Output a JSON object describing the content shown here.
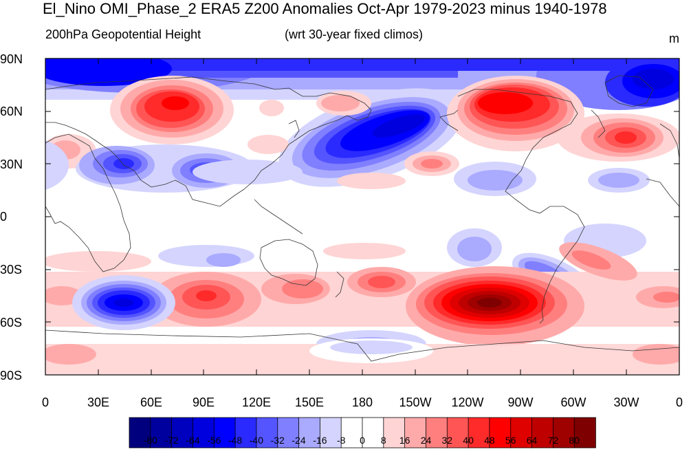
{
  "title": "El_Nino OMI_Phase_2 ERA5 Z200 Anomalies Oct-Apr 1979-2023 minus 1940-1978",
  "subtitle_left": "200hPa Geopotential Height",
  "subtitle_center": "(wrt 30-year fixed climos)",
  "units": "m",
  "lat_labels": [
    "90N",
    "60N",
    "30N",
    "0",
    "30S",
    "60S",
    "90S"
  ],
  "lon_labels": [
    "0",
    "30E",
    "60E",
    "90E",
    "120E",
    "150E",
    "180",
    "150W",
    "120W",
    "90W",
    "60W",
    "30W",
    "0"
  ],
  "colorbar": {
    "levels": [
      "-80",
      "-72",
      "-64",
      "-56",
      "-48",
      "-40",
      "-32",
      "-24",
      "-16",
      "-8",
      "0",
      "8",
      "16",
      "24",
      "32",
      "40",
      "48",
      "56",
      "64",
      "72",
      "80"
    ],
    "colors": [
      "#00007f",
      "#00009f",
      "#0000bf",
      "#0000df",
      "#0000ff",
      "#2a2aff",
      "#5555ff",
      "#7f7fff",
      "#aaaaff",
      "#d4d4ff",
      "#ffffff",
      "#ffffff",
      "#ffd4d4",
      "#ffaaaa",
      "#ff7f7f",
      "#ff5555",
      "#ff2a2a",
      "#ff0000",
      "#df0000",
      "#bf0000",
      "#9f0000",
      "#7f0000"
    ]
  }
}
